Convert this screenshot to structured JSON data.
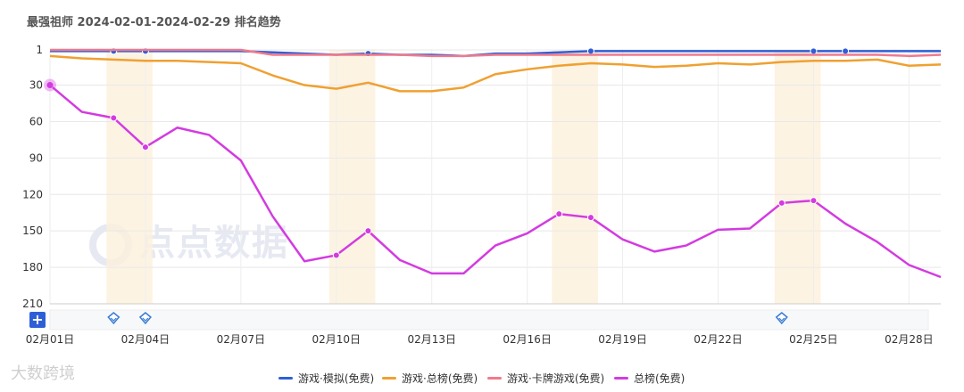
{
  "title": "最强祖师 2024-02-01-2024-02-29 排名趋势",
  "watermark_main": "点点数据",
  "watermark_corner": "大数跨境",
  "zoom_button": "+",
  "chart_data": {
    "type": "line",
    "title": "最强祖师 2024-02-01-2024-02-29 排名趋势",
    "x": [
      "02-01",
      "02-02",
      "02-03",
      "02-04",
      "02-05",
      "02-06",
      "02-07",
      "02-08",
      "02-09",
      "02-10",
      "02-11",
      "02-12",
      "02-13",
      "02-14",
      "02-15",
      "02-16",
      "02-17",
      "02-18",
      "02-19",
      "02-20",
      "02-21",
      "02-22",
      "02-23",
      "02-24",
      "02-25",
      "02-26",
      "02-27",
      "02-28",
      "02-29"
    ],
    "x_tick_labels": [
      "02月01日",
      "02月04日",
      "02月07日",
      "02月10日",
      "02月13日",
      "02月16日",
      "02月19日",
      "02月22日",
      "02月25日",
      "02月28日"
    ],
    "y_tick_labels": [
      "1",
      "30",
      "60",
      "90",
      "120",
      "150",
      "180",
      "210"
    ],
    "y_reversed": true,
    "ylim": [
      1,
      210
    ],
    "grid": true,
    "legend_position": "bottom",
    "highlight_bands": [
      [
        "02-03",
        "02-04"
      ],
      [
        "02-10",
        "02-11"
      ],
      [
        "02-17",
        "02-18"
      ],
      [
        "02-24",
        "02-25"
      ]
    ],
    "series": [
      {
        "name": "游戏·模拟(免费)",
        "color": "#2f5fd6",
        "values": [
          2,
          2,
          2,
          2,
          2,
          2,
          2,
          3,
          4,
          5,
          4,
          5,
          5,
          6,
          4,
          4,
          3,
          2,
          2,
          2,
          2,
          2,
          2,
          2,
          2,
          2,
          2,
          2,
          2
        ],
        "markers": [
          2,
          3,
          10,
          17,
          24,
          25
        ]
      },
      {
        "name": "游戏·总榜(免费)",
        "color": "#f0a030",
        "values": [
          6,
          8,
          9,
          10,
          10,
          11,
          12,
          22,
          30,
          33,
          28,
          35,
          35,
          32,
          21,
          17,
          14,
          12,
          13,
          15,
          14,
          12,
          13,
          11,
          10,
          10,
          9,
          14,
          13
        ],
        "markers": []
      },
      {
        "name": "游戏·卡牌游戏(免费)",
        "color": "#f07a8c",
        "values": [
          1,
          1,
          1,
          1,
          1,
          1,
          1,
          5,
          5,
          5,
          5,
          5,
          6,
          6,
          5,
          5,
          5,
          5,
          5,
          5,
          5,
          5,
          5,
          5,
          5,
          5,
          5,
          6,
          5
        ],
        "markers": []
      },
      {
        "name": "总榜(免费)",
        "color": "#d33be0",
        "values": [
          30,
          52,
          57,
          81,
          65,
          71,
          92,
          138,
          175,
          170,
          150,
          174,
          185,
          185,
          162,
          152,
          136,
          139,
          157,
          167,
          162,
          149,
          148,
          127,
          125,
          144,
          159,
          178,
          188
        ],
        "markers": [
          0,
          2,
          3,
          9,
          10,
          16,
          17,
          23,
          24
        ]
      }
    ],
    "event_markers": [
      "02-03",
      "02-04",
      "02-24"
    ]
  }
}
